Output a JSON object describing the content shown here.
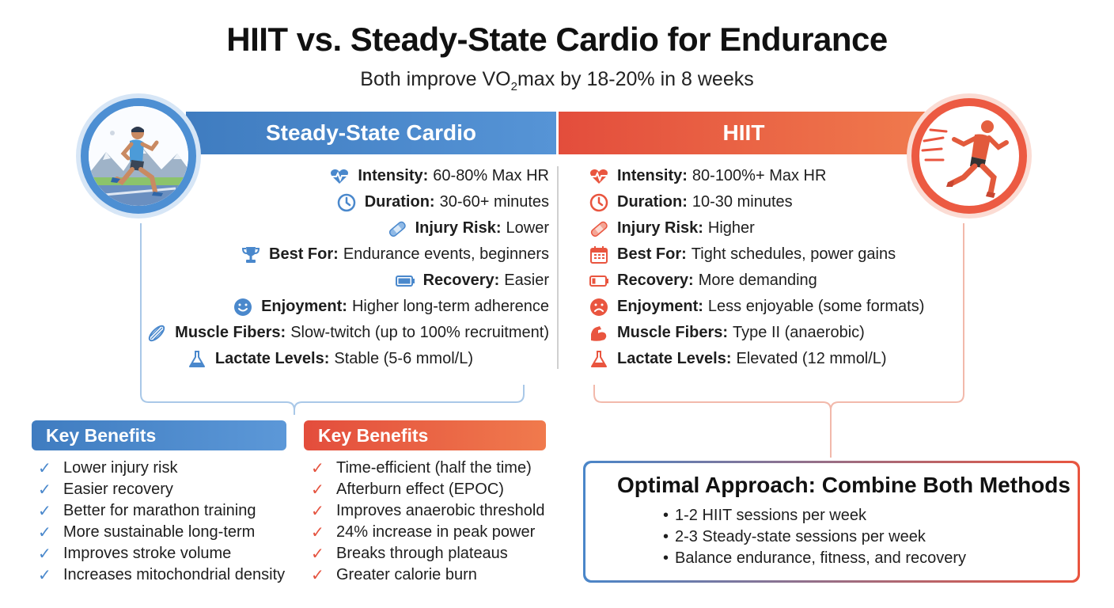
{
  "title": "HIIT vs. Steady-State Cardio for Endurance",
  "subtitle": {
    "before": "Both improve VO",
    "sub": "2",
    "after": "max by 18-20% in 8 weeks"
  },
  "colors": {
    "blue": "#4a88cc",
    "red": "#e9553f"
  },
  "steady_state": {
    "header": "Steady-State Cardio",
    "items": [
      {
        "icon": "heartbeat-icon",
        "label": "Intensity:",
        "value": "60-80% Max HR"
      },
      {
        "icon": "clock-icon",
        "label": "Duration:",
        "value": "30-60+ minutes"
      },
      {
        "icon": "bandage-icon",
        "label": "Injury Risk:",
        "value": "Lower"
      },
      {
        "icon": "trophy-icon",
        "label": "Best For:",
        "value": "Endurance events, beginners"
      },
      {
        "icon": "battery-full-icon",
        "label": "Recovery:",
        "value": "Easier"
      },
      {
        "icon": "smiley-icon",
        "label": "Enjoyment:",
        "value": "Higher long-term adherence"
      },
      {
        "icon": "muscle-fiber-icon",
        "label": "Muscle Fibers:",
        "value": "Slow-twitch (up to 100% recruitment)"
      },
      {
        "icon": "flask-icon",
        "label": "Lactate Levels:",
        "value": "Stable (5-6 mmol/L)"
      }
    ],
    "benefits_header": "Key Benefits",
    "benefits": [
      "Lower injury risk",
      "Easier recovery",
      "Better for marathon training",
      "More sustainable long-term",
      "Improves stroke volume",
      "Increases mitochondrial density"
    ]
  },
  "hiit": {
    "header": "HIIT",
    "items": [
      {
        "icon": "heartbeat-icon",
        "label": "Intensity:",
        "value": "80-100%+ Max HR"
      },
      {
        "icon": "clock-icon",
        "label": "Duration:",
        "value": "10-30 minutes"
      },
      {
        "icon": "bandage-icon",
        "label": "Injury Risk:",
        "value": "Higher"
      },
      {
        "icon": "calendar-icon",
        "label": "Best For:",
        "value": "Tight schedules, power gains"
      },
      {
        "icon": "battery-low-icon",
        "label": "Recovery:",
        "value": "More demanding"
      },
      {
        "icon": "frown-icon",
        "label": "Enjoyment:",
        "value": "Less enjoyable (some formats)"
      },
      {
        "icon": "flexed-bicep-icon",
        "label": "Muscle Fibers:",
        "value": "Type II (anaerobic)"
      },
      {
        "icon": "flask-icon",
        "label": "Lactate Levels:",
        "value": "Elevated (12 mmol/L)"
      }
    ],
    "benefits_header": "Key Benefits",
    "benefits": [
      "Time-efficient (half the time)",
      "Afterburn effect (EPOC)",
      "Improves anaerobic threshold",
      "24% increase in peak power",
      "Breaks through plateaus",
      "Greater calorie burn"
    ]
  },
  "optimal": {
    "title": "Optimal Approach: Combine Both Methods",
    "items": [
      "1-2 HIIT sessions per week",
      "2-3 Steady-state sessions per week",
      "Balance endurance, fitness, and recovery"
    ]
  }
}
